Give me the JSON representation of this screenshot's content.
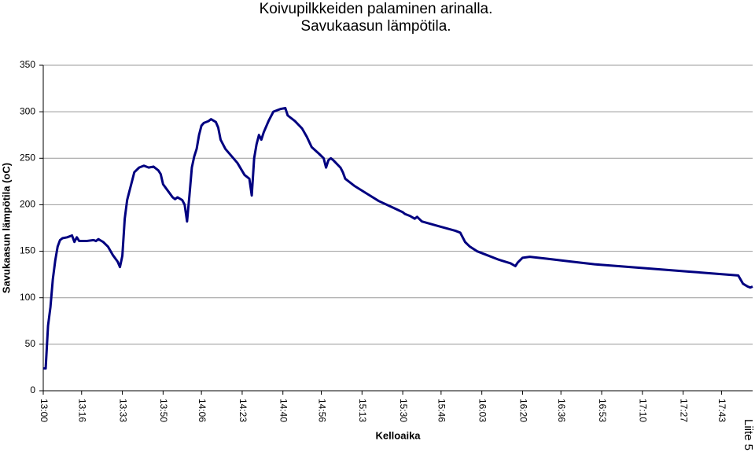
{
  "chart_data": {
    "type": "line",
    "title": [
      "Koivupilkkeiden palaminen arinalla.",
      "Savukaasun lämpötila."
    ],
    "y_label": "Savukaasun lämpötila (oC)",
    "x_label": "Kelloaika",
    "annotation": "Liite 5",
    "x": [
      "13:00",
      "13:01",
      "13:02",
      "13:03",
      "13:04",
      "13:05",
      "13:06",
      "13:07",
      "13:08",
      "13:10",
      "13:12",
      "13:13",
      "13:14",
      "13:15",
      "13:18",
      "13:21",
      "13:22",
      "13:23",
      "13:25",
      "13:27",
      "13:29",
      "13:31",
      "13:32",
      "13:33",
      "13:34",
      "13:35",
      "13:36",
      "13:37",
      "13:38",
      "13:40",
      "13:42",
      "13:44",
      "13:46",
      "13:48",
      "13:49",
      "13:50",
      "13:52",
      "13:54",
      "13:55",
      "13:56",
      "13:58",
      "13:59",
      "14:00",
      "14:01",
      "14:02",
      "14:03",
      "14:04",
      "14:05",
      "14:06",
      "14:07",
      "14:09",
      "14:10",
      "14:12",
      "14:13",
      "14:14",
      "14:16",
      "14:18",
      "14:21",
      "14:24",
      "14:26",
      "14:27",
      "14:28",
      "14:29",
      "14:30",
      "14:31",
      "14:32",
      "14:34",
      "14:36",
      "14:38",
      "14:39",
      "14:41",
      "14:42",
      "14:45",
      "14:48",
      "14:50",
      "14:52",
      "14:55",
      "14:57",
      "14:58",
      "14:59",
      "15:00",
      "15:01",
      "15:04",
      "15:05",
      "15:06",
      "15:10",
      "15:15",
      "15:20",
      "15:25",
      "15:30",
      "15:31",
      "15:33",
      "15:35",
      "15:36",
      "15:38",
      "15:45",
      "15:52",
      "15:54",
      "15:56",
      "15:58",
      "16:01",
      "16:05",
      "16:10",
      "16:15",
      "16:17",
      "16:18",
      "16:20",
      "16:23",
      "16:30",
      "16:40",
      "16:50",
      "17:00",
      "17:10",
      "17:20",
      "17:30",
      "17:40",
      "17:50",
      "17:52",
      "17:54",
      "17:55",
      "17:56"
    ],
    "series": [
      {
        "name": "Savukaasun lämpötila",
        "color": "#000080",
        "values": [
          24,
          24,
          70,
          90,
          120,
          140,
          155,
          162,
          164,
          165,
          167,
          160,
          165,
          161,
          161,
          162,
          161,
          163,
          160,
          155,
          146,
          139,
          133,
          145,
          185,
          205,
          215,
          225,
          235,
          240,
          242,
          240,
          241,
          237,
          233,
          222,
          215,
          208,
          206,
          208,
          205,
          200,
          182,
          210,
          240,
          252,
          260,
          275,
          285,
          288,
          290,
          292,
          289,
          283,
          270,
          260,
          254,
          245,
          232,
          228,
          210,
          250,
          265,
          275,
          270,
          278,
          290,
          300,
          302,
          303,
          304,
          296,
          290,
          282,
          273,
          262,
          255,
          250,
          240,
          248,
          250,
          248,
          240,
          235,
          228,
          220,
          212,
          204,
          198,
          192,
          190,
          188,
          185,
          187,
          182,
          177,
          172,
          170,
          160,
          155,
          150,
          146,
          141,
          137,
          134,
          138,
          143,
          144,
          142,
          139,
          136,
          134,
          132,
          130,
          128,
          126,
          124,
          115,
          112,
          111,
          112
        ]
      }
    ],
    "xlim": [
      "13:00",
      "17:56"
    ],
    "xticks": [
      "13:00",
      "13:16",
      "13:33",
      "13:50",
      "14:06",
      "14:23",
      "14:40",
      "14:56",
      "15:13",
      "15:30",
      "15:46",
      "16:03",
      "16:20",
      "16:36",
      "16:53",
      "17:10",
      "17:27",
      "17:43"
    ],
    "ylim": [
      0,
      350
    ],
    "yticks": [
      0,
      50,
      100,
      150,
      200,
      250,
      300,
      350
    ],
    "grid": true
  }
}
